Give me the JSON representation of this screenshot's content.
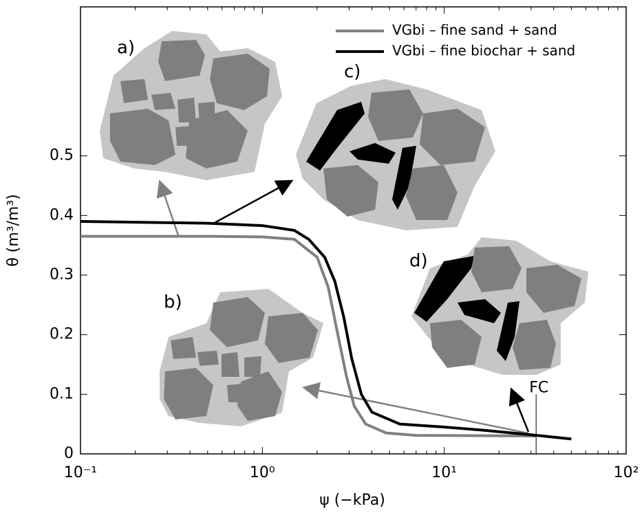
{
  "chart_data": {
    "type": "line",
    "x_label": "ψ (−kPa)",
    "y_label": "θ (m³/m³)",
    "xscale": "log",
    "xlim": [
      0.1,
      100
    ],
    "xticks": [
      {
        "value": 0.1,
        "label": "10⁻¹"
      },
      {
        "value": 1,
        "label": "10⁰"
      },
      {
        "value": 10,
        "label": "10¹"
      },
      {
        "value": 100,
        "label": "10²"
      }
    ],
    "ylim": [
      0,
      0.75
    ],
    "yticks": [
      0,
      0.1,
      0.2,
      0.3,
      0.4,
      0.5
    ],
    "legend": "upper right",
    "series": [
      {
        "name": "VGbi – fine sand + sand",
        "color": "#808080",
        "x": [
          0.1,
          0.5,
          1,
          1.5,
          2,
          2.3,
          2.6,
          2.9,
          3.2,
          3.7,
          4.8,
          7,
          32
        ],
        "values": [
          0.365,
          0.365,
          0.364,
          0.36,
          0.33,
          0.28,
          0.2,
          0.13,
          0.08,
          0.05,
          0.035,
          0.031,
          0.03
        ]
      },
      {
        "name": "VGbi – fine biochar + sand",
        "color": "#000000",
        "x": [
          0.1,
          0.5,
          1,
          1.5,
          1.8,
          2.2,
          2.5,
          2.8,
          3.1,
          3.5,
          4,
          5.7,
          10,
          16,
          30,
          50
        ],
        "values": [
          0.39,
          0.387,
          0.383,
          0.375,
          0.36,
          0.33,
          0.29,
          0.23,
          0.16,
          0.1,
          0.07,
          0.05,
          0.045,
          0.04,
          0.032,
          0.025
        ]
      }
    ],
    "annotations": [
      "a)",
      "b)",
      "c)",
      "d)",
      "FC"
    ]
  }
}
